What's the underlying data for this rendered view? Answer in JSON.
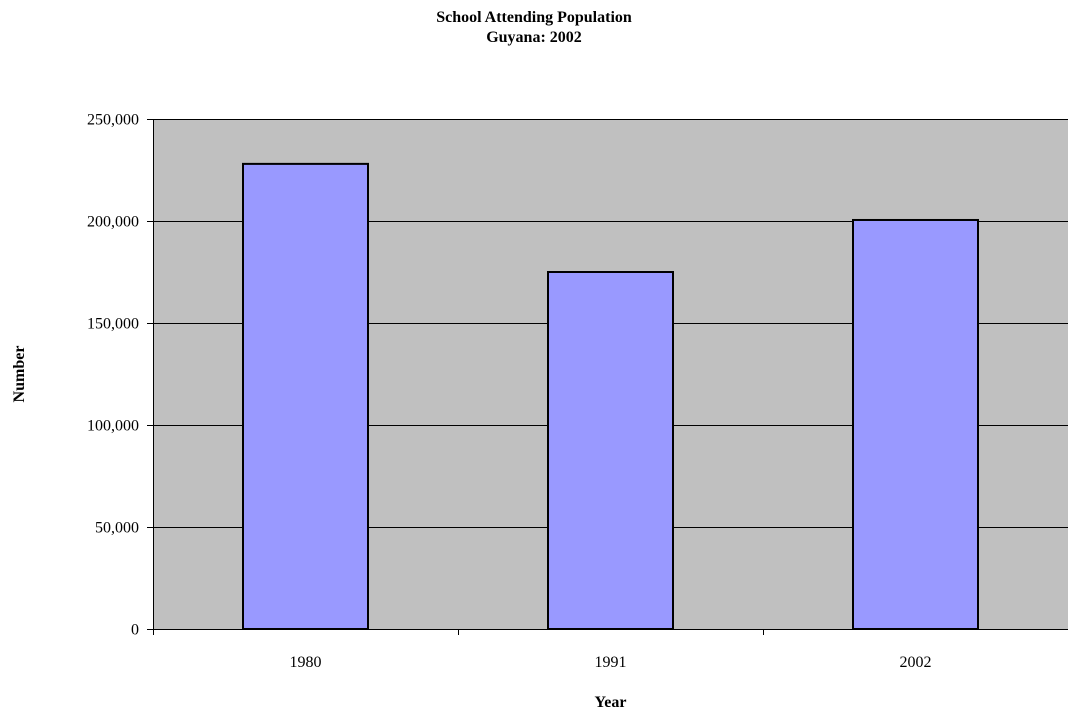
{
  "chart_data": {
    "type": "bar",
    "title": "School Attending Population",
    "subtitle": "Guyana: 2002",
    "xlabel": "Year",
    "ylabel": "Number",
    "categories": [
      "1980",
      "1991",
      "2002"
    ],
    "values": [
      228000,
      175000,
      200500
    ],
    "ylim": [
      0,
      250000
    ],
    "yticks": [
      0,
      50000,
      100000,
      150000,
      200000,
      250000
    ],
    "ytick_labels": [
      "0",
      "50,000",
      "100,000",
      "150,000",
      "200,000",
      "250,000"
    ],
    "grid": true,
    "legend": "none",
    "colors": {
      "plot_background": "#c0c0c0",
      "bar_fill": "#9999ff",
      "bar_stroke": "#000000",
      "gridline": "#000000"
    }
  }
}
